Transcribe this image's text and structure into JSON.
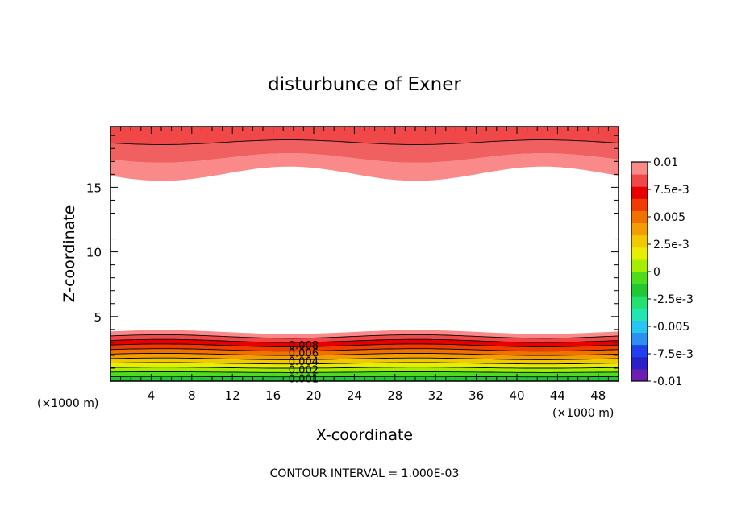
{
  "chart_data": {
    "type": "heatmap",
    "title": "disturbunce of Exner",
    "xlabel": "X-coordinate",
    "ylabel": "Z-coordinate",
    "x_unit_left": "(×1000 m)",
    "x_unit_right": "(×1000 m)",
    "footer": "CONTOUR INTERVAL = 1.000E-03",
    "xlim": [
      0,
      50
    ],
    "ylim": [
      0,
      19.7
    ],
    "x_ticks": [
      "4",
      "8",
      "12",
      "16",
      "20",
      "24",
      "28",
      "32",
      "36",
      "40",
      "44",
      "48"
    ],
    "y_ticks": [
      "5",
      "10",
      "15"
    ],
    "contour_labels": [
      "0.008",
      "0.006",
      "0.004",
      "0.002",
      "0.001"
    ],
    "colorbar": {
      "ticks": [
        "0.01",
        "7.5e-3",
        "0.005",
        "2.5e-3",
        "0",
        "-2.5e-3",
        "-0.005",
        "-7.5e-3",
        "-0.01"
      ],
      "colors": [
        "#6a1fb0",
        "#2b20c8",
        "#2040ee",
        "#2f8ff0",
        "#27c6f2",
        "#22e6b0",
        "#24e070",
        "#22c832",
        "#50dc1e",
        "#a6ee00",
        "#e8ee00",
        "#f2c800",
        "#f29e00",
        "#f07000",
        "#f03c00",
        "#e80000",
        "#f04848",
        "#fa8a8a"
      ]
    },
    "bottom_layer": {
      "z_top_range_km": [
        3.6,
        4.0
      ],
      "levels": [
        0.008,
        0.007,
        0.006,
        0.005,
        0.004,
        0.003,
        0.002,
        0.001,
        0.0
      ],
      "colors": [
        "#fa8a8a",
        "#f04848",
        "#e80000",
        "#f03c00",
        "#f07000",
        "#f29e00",
        "#f2c800",
        "#e8ee00",
        "#a6ee00",
        "#50dc1e",
        "#22c832"
      ]
    },
    "top_layer": {
      "z_bottom_range_km": [
        15.5,
        16.6
      ],
      "colors": [
        "#fa8a8a",
        "#f06060",
        "#f04848"
      ]
    }
  }
}
